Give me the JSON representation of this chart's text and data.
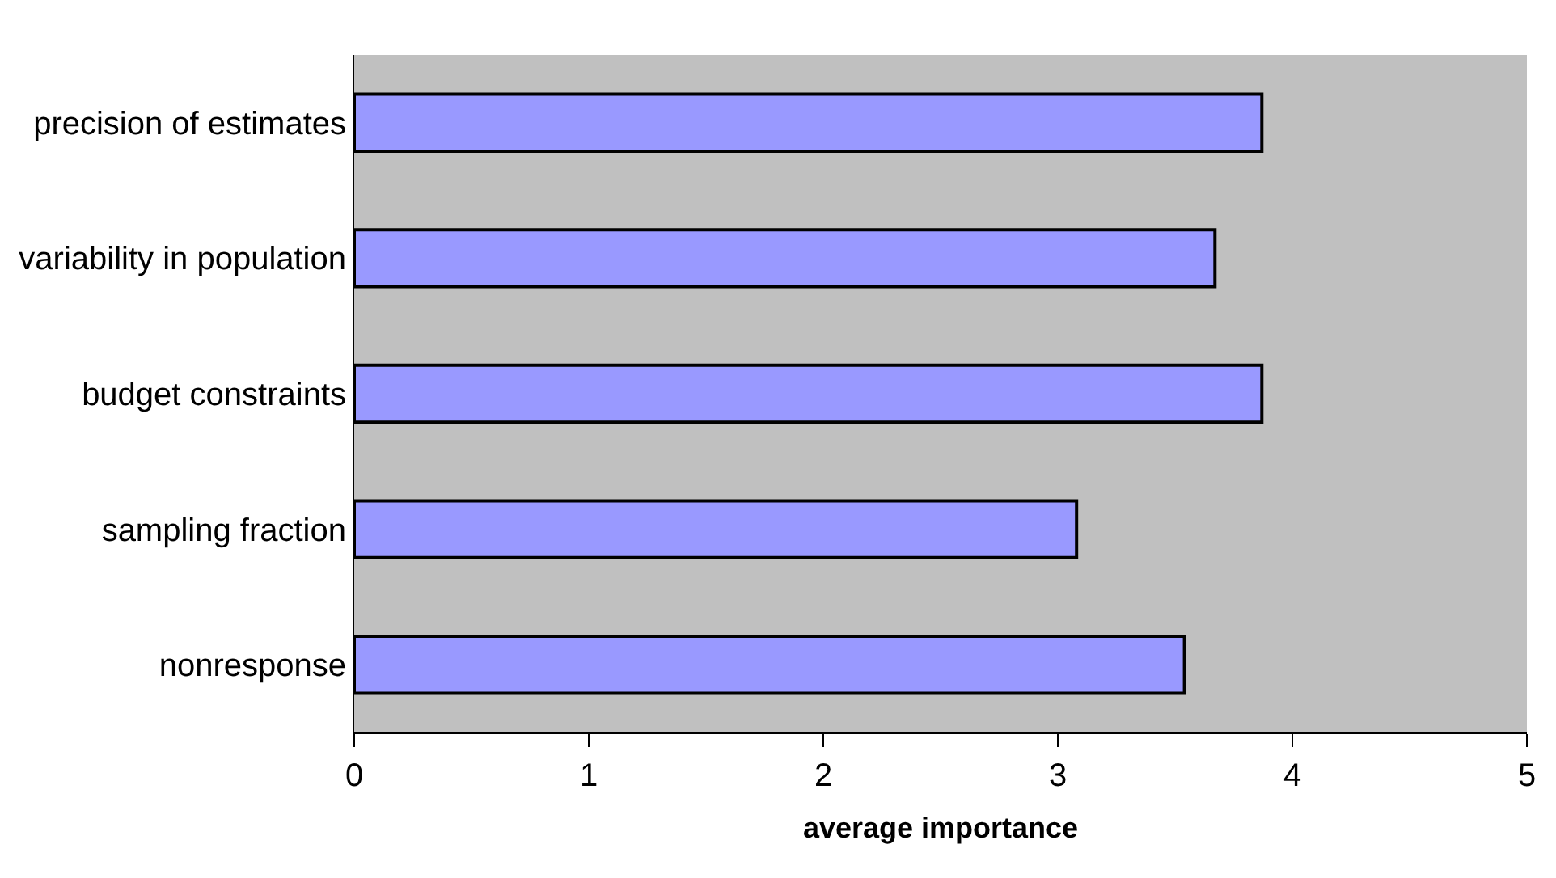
{
  "chart_data": {
    "type": "bar",
    "orientation": "horizontal",
    "xlabel": "average importance",
    "categories": [
      "precision of estimates",
      "variability in population",
      "budget constraints",
      "sampling fraction",
      "nonresponse"
    ],
    "values": [
      3.87,
      3.67,
      3.87,
      3.08,
      3.54
    ],
    "color": "#9999ff",
    "xlim": [
      0,
      5
    ],
    "xticks": [
      0,
      1,
      2,
      3,
      4,
      5
    ],
    "grid": false
  }
}
